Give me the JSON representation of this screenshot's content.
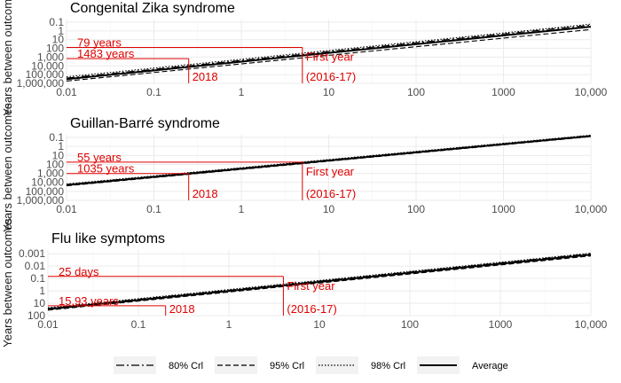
{
  "chart_data": [
    {
      "type": "line",
      "title": "Congenital Zika syndrome",
      "ylabel": "Years between outcomes",
      "xscale": "log",
      "yscale": "log (reversed)",
      "xlim": [
        0.01,
        10000
      ],
      "ylim_years": [
        1000000,
        0.05
      ],
      "x_ticks": [
        "0.01",
        "0.1",
        "1",
        "10",
        "100",
        "1000",
        "10,000"
      ],
      "y_ticks": [
        "0.1",
        "1",
        "10",
        "100",
        "1,000",
        "10,000",
        "100,000",
        "1,000,000"
      ],
      "grid": true,
      "series": [
        {
          "name": "Average",
          "x": [
            0.01,
            10000
          ],
          "y": [
            333333,
            0.333
          ]
        },
        {
          "name": "80% CrI",
          "x": [
            0.01,
            10000
          ],
          "y": [
            250000,
            0.22
          ]
        },
        {
          "name": "95% CrI",
          "x": [
            0.01,
            10000
          ],
          "y": [
            550000,
            0.7
          ]
        },
        {
          "name": "98% CrI",
          "x": [
            0.01,
            10000
          ],
          "y": [
            180000,
            0.17
          ]
        }
      ],
      "annotations": [
        {
          "label": "79 years",
          "x_from": 0.01,
          "x_to": 5,
          "y": 79
        },
        {
          "label": "1483 years",
          "x_from": 0.01,
          "x_to": 0.25,
          "y": 1483
        },
        {
          "label": "2018",
          "x": 0.25
        },
        {
          "label": "First year",
          "x": 5
        },
        {
          "label": "(2016-17)",
          "x": 5
        }
      ]
    },
    {
      "type": "line",
      "title": "Guillan-Barré syndrome",
      "ylabel": "Years between outcomes",
      "xscale": "log",
      "yscale": "log (reversed)",
      "xlim": [
        0.01,
        10000
      ],
      "ylim_years": [
        1000000,
        0.05
      ],
      "x_ticks": [
        "0.01",
        "0.1",
        "1",
        "10",
        "100",
        "1000",
        "10,000"
      ],
      "y_ticks": [
        "0.1",
        "1",
        "10",
        "100",
        "1,000",
        "10,000",
        "100,000",
        "1,000,000"
      ],
      "grid": true,
      "series": [
        {
          "name": "Average",
          "x": [
            0.01,
            10000
          ],
          "y": [
            20000,
            0.07
          ]
        },
        {
          "name": "80% CrI",
          "x": [
            0.01,
            10000
          ],
          "y": [
            17000,
            0.06
          ]
        },
        {
          "name": "95% CrI",
          "x": [
            0.01,
            10000
          ],
          "y": [
            24000,
            0.08
          ]
        },
        {
          "name": "98% CrI",
          "x": [
            0.01,
            10000
          ],
          "y": [
            15000,
            0.055
          ]
        }
      ],
      "annotations": [
        {
          "label": "55 years",
          "x_from": 0.01,
          "x_to": 5,
          "y": 55
        },
        {
          "label": "1035 years",
          "x_from": 0.01,
          "x_to": 0.25,
          "y": 1035
        },
        {
          "label": "2018",
          "x": 0.25
        },
        {
          "label": "First year",
          "x": 5
        },
        {
          "label": "(2016-17)",
          "x": 5
        }
      ]
    },
    {
      "type": "line",
      "title": "Flu like symptoms",
      "ylabel": "Years between outcomes",
      "xscale": "log",
      "yscale": "log (reversed)",
      "xlim": [
        0.01,
        10000
      ],
      "ylim_years": [
        100,
        0.0005
      ],
      "x_ticks": [
        "0.01",
        "0.1",
        "1",
        "10",
        "100",
        "1000",
        "10,000"
      ],
      "y_ticks": [
        "0.001",
        "0.01",
        "0.1",
        "1",
        "10",
        "100"
      ],
      "grid": true,
      "series": [
        {
          "name": "Average",
          "x": [
            0.01,
            10000
          ],
          "y": [
            30,
            0.0012
          ]
        },
        {
          "name": "80% CrI",
          "x": [
            0.01,
            10000
          ],
          "y": [
            26,
            0.001
          ]
        },
        {
          "name": "95% CrI",
          "x": [
            0.01,
            10000
          ],
          "y": [
            36,
            0.0015
          ]
        },
        {
          "name": "98% CrI",
          "x": [
            0.01,
            10000
          ],
          "y": [
            23,
            0.0009
          ]
        }
      ],
      "annotations": [
        {
          "label": "25 days",
          "x_from": 0.01,
          "x_to": 4,
          "y": 0.068
        },
        {
          "label": "15.93 years",
          "x_from": 0.01,
          "x_to": 0.2,
          "y": 15.93
        },
        {
          "label": "2018",
          "x": 0.2
        },
        {
          "label": "First year",
          "x": 4
        },
        {
          "label": "(2016-17)",
          "x": 4
        }
      ]
    }
  ],
  "legend": {
    "placement": "bottom",
    "items": [
      {
        "label": "80% Crl",
        "style": "longdash-dot"
      },
      {
        "label": "95% Crl",
        "style": "dashed"
      },
      {
        "label": "98% Crl",
        "style": "dotted"
      },
      {
        "label": "Average",
        "style": "solid"
      }
    ]
  },
  "colors": {
    "annotation": "#e00000",
    "grid": "#ebebeb",
    "tick_text": "#4d4d4d",
    "line": "#000000"
  }
}
